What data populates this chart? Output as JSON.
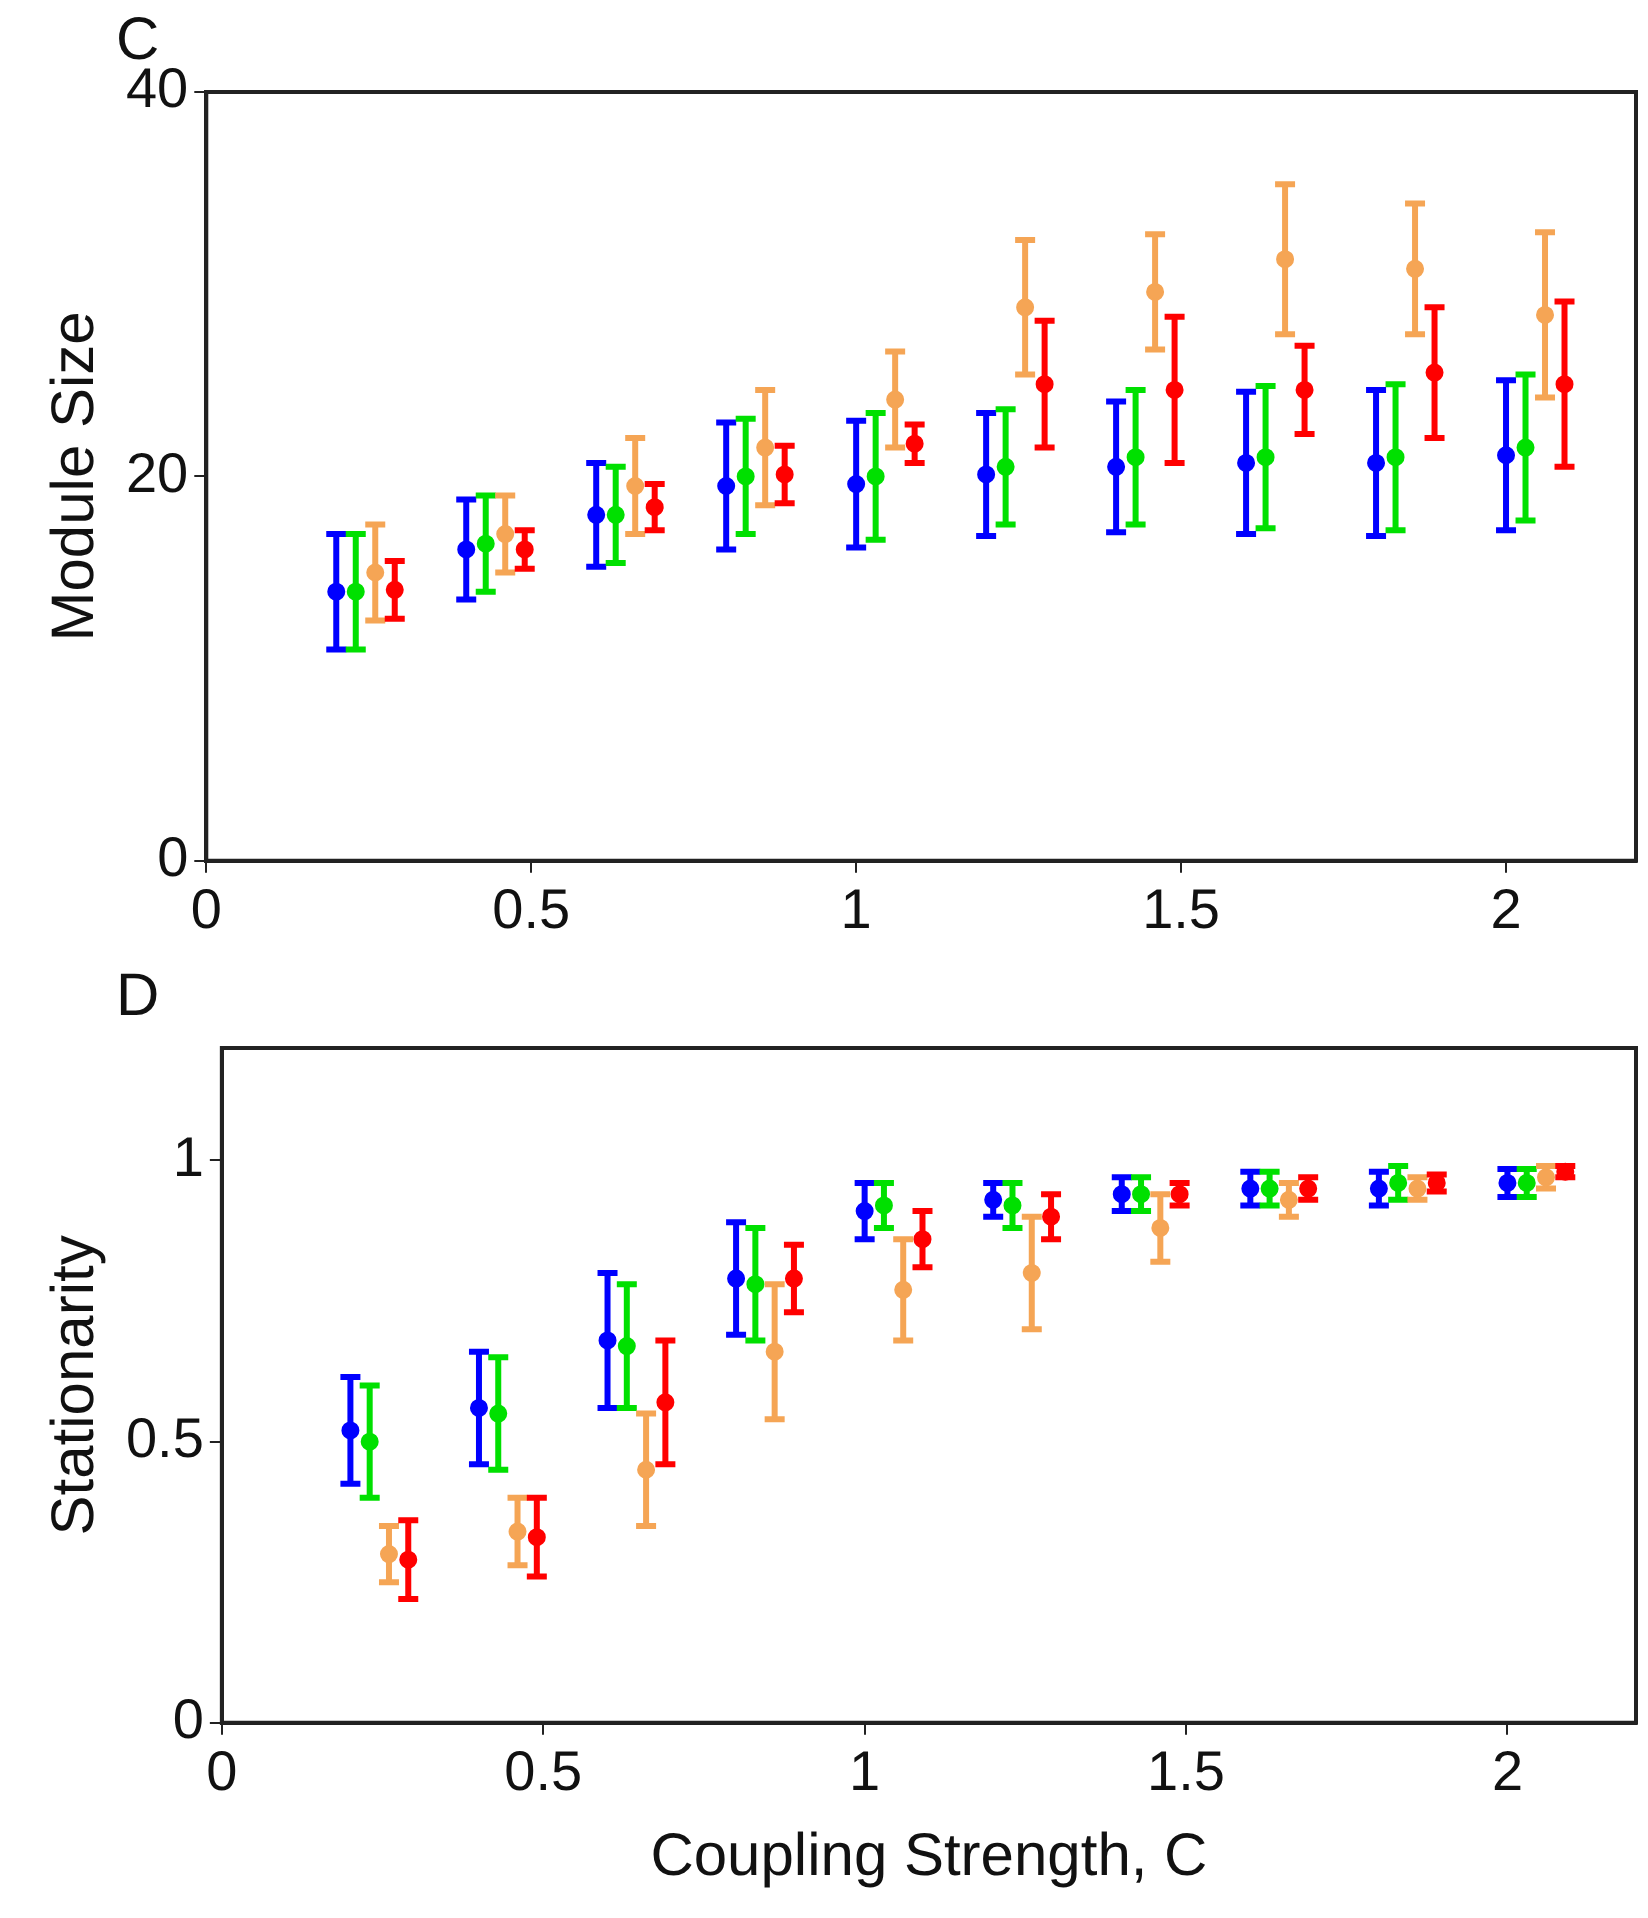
{
  "chart_data": [
    {
      "type": "scatter",
      "title": "C",
      "ylabel": "Module Size",
      "xlim": [
        0,
        2.2
      ],
      "xticks": [
        0,
        0.5,
        1,
        1.5,
        2
      ],
      "ylim": [
        0,
        40
      ],
      "yticks": [
        0,
        20,
        40
      ],
      "grid": false,
      "legend": false,
      "marker": "circle",
      "series": [
        {
          "color": "#0000ff",
          "x": [
            0.2,
            0.4,
            0.6,
            0.8,
            1.0,
            1.2,
            1.4,
            1.6,
            1.8,
            2.0
          ],
          "values": [
            14.0,
            16.2,
            18.0,
            19.5,
            19.6,
            20.1,
            20.5,
            20.7,
            20.7,
            21.1
          ],
          "errors": [
            3.0,
            2.6,
            2.7,
            3.3,
            3.3,
            3.2,
            3.4,
            3.7,
            3.8,
            3.9
          ]
        },
        {
          "color": "#00e000",
          "x": [
            0.23,
            0.43,
            0.63,
            0.83,
            1.03,
            1.23,
            1.43,
            1.63,
            1.83,
            2.03
          ],
          "values": [
            14.0,
            16.5,
            18.0,
            20.0,
            20.0,
            20.5,
            21.0,
            21.0,
            21.0,
            21.5
          ],
          "errors": [
            3.0,
            2.5,
            2.5,
            3.0,
            3.3,
            3.0,
            3.5,
            3.7,
            3.8,
            3.8
          ]
        },
        {
          "color": "#f5a555",
          "x": [
            0.26,
            0.46,
            0.66,
            0.86,
            1.06,
            1.26,
            1.46,
            1.66,
            1.86,
            2.06
          ],
          "values": [
            15.0,
            17.0,
            19.5,
            21.5,
            24.0,
            28.8,
            29.6,
            31.3,
            30.8,
            28.4
          ],
          "errors": [
            2.5,
            2.0,
            2.5,
            3.0,
            2.5,
            3.5,
            3.0,
            3.9,
            3.4,
            4.3
          ]
        },
        {
          "color": "#ff0000",
          "x": [
            0.29,
            0.49,
            0.69,
            0.89,
            1.09,
            1.29,
            1.49,
            1.69,
            1.89,
            2.09
          ],
          "values": [
            14.1,
            16.2,
            18.4,
            20.1,
            21.7,
            24.8,
            24.5,
            24.5,
            25.4,
            24.8
          ],
          "errors": [
            1.5,
            1.0,
            1.2,
            1.5,
            1.0,
            3.3,
            3.8,
            2.3,
            3.4,
            4.3
          ]
        }
      ]
    },
    {
      "type": "scatter",
      "title": "D",
      "xlabel": "Coupling Strength, C",
      "ylabel": "Stationarity",
      "xlim": [
        0,
        2.2
      ],
      "xticks": [
        0,
        0.5,
        1,
        1.5,
        2
      ],
      "ylim": [
        0,
        1.2
      ],
      "yticks": [
        0,
        0.5,
        1
      ],
      "grid": false,
      "legend": false,
      "marker": "circle",
      "series": [
        {
          "color": "#0000ff",
          "x": [
            0.2,
            0.4,
            0.6,
            0.8,
            1.0,
            1.2,
            1.4,
            1.6,
            1.8,
            2.0
          ],
          "values": [
            0.52,
            0.56,
            0.68,
            0.79,
            0.91,
            0.93,
            0.94,
            0.95,
            0.95,
            0.96
          ],
          "errors": [
            0.095,
            0.1,
            0.12,
            0.1,
            0.05,
            0.03,
            0.03,
            0.03,
            0.03,
            0.025
          ]
        },
        {
          "color": "#00e000",
          "x": [
            0.23,
            0.43,
            0.63,
            0.83,
            1.03,
            1.23,
            1.43,
            1.63,
            1.83,
            2.03
          ],
          "values": [
            0.5,
            0.55,
            0.67,
            0.78,
            0.92,
            0.92,
            0.94,
            0.95,
            0.96,
            0.96
          ],
          "errors": [
            0.1,
            0.1,
            0.11,
            0.1,
            0.04,
            0.04,
            0.03,
            0.03,
            0.03,
            0.025
          ]
        },
        {
          "color": "#f5a555",
          "x": [
            0.26,
            0.46,
            0.66,
            0.86,
            1.06,
            1.26,
            1.46,
            1.66,
            1.86,
            2.06
          ],
          "values": [
            0.3,
            0.34,
            0.45,
            0.66,
            0.77,
            0.8,
            0.88,
            0.93,
            0.95,
            0.97
          ],
          "errors": [
            0.05,
            0.06,
            0.1,
            0.12,
            0.09,
            0.1,
            0.06,
            0.03,
            0.02,
            0.02
          ]
        },
        {
          "color": "#ff0000",
          "x": [
            0.29,
            0.49,
            0.69,
            0.89,
            1.09,
            1.29,
            1.49,
            1.69,
            1.89,
            2.09
          ],
          "values": [
            0.29,
            0.33,
            0.57,
            0.79,
            0.86,
            0.9,
            0.94,
            0.95,
            0.96,
            0.98
          ],
          "errors": [
            0.07,
            0.07,
            0.11,
            0.06,
            0.05,
            0.04,
            0.02,
            0.02,
            0.015,
            0.01
          ]
        }
      ]
    }
  ]
}
